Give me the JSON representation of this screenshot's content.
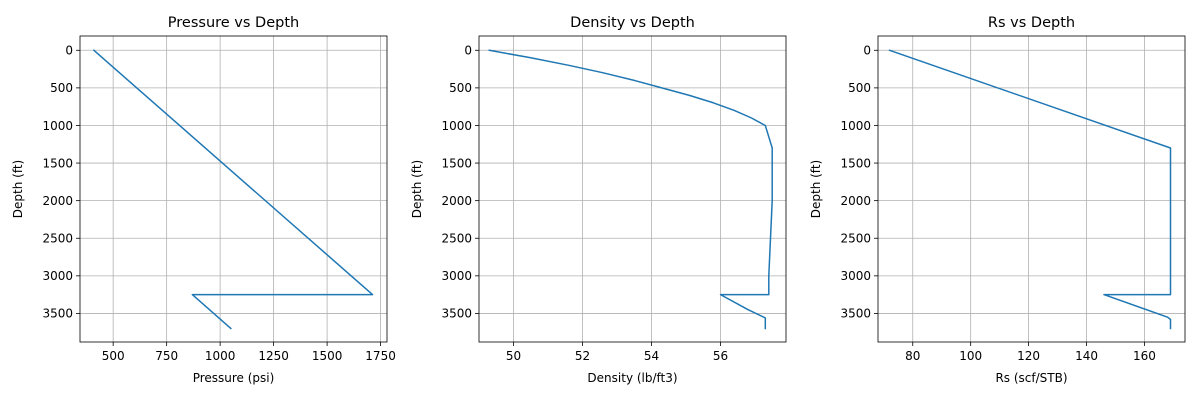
{
  "accent": "#1f77b4",
  "chart_data": [
    {
      "type": "line",
      "title": "Pressure vs Depth",
      "xlabel": "Pressure (psi)",
      "ylabel": "Depth (ft)",
      "xlim": [
        345,
        1780
      ],
      "ylim": [
        3880,
        -190
      ],
      "xticks": [
        "500",
        "750",
        "1000",
        "1250",
        "1500",
        "1750"
      ],
      "xtick_values": [
        500,
        750,
        1000,
        1250,
        1500,
        1750
      ],
      "yticks": [
        "0",
        "500",
        "1000",
        "1500",
        "2000",
        "2500",
        "3000",
        "3500"
      ],
      "ytick_values": [
        0,
        500,
        1000,
        1500,
        2000,
        2500,
        3000,
        3500
      ],
      "grid": true,
      "series": [
        {
          "color": "#1f77b4",
          "x": [
            410,
            1712,
            1712,
            870,
            1050
          ],
          "y": [
            0,
            3250,
            3250,
            3250,
            3700
          ]
        }
      ]
    },
    {
      "type": "line",
      "title": "Density vs Depth",
      "xlabel": "Density (lb/ft3)",
      "ylabel": "Depth (ft)",
      "xlim": [
        49.0,
        57.9
      ],
      "ylim": [
        3880,
        -190
      ],
      "xticks": [
        "50",
        "52",
        "54",
        "56"
      ],
      "xtick_values": [
        50,
        52,
        54,
        56
      ],
      "yticks": [
        "0",
        "500",
        "1000",
        "1500",
        "2000",
        "2500",
        "3000",
        "3500"
      ],
      "ytick_values": [
        0,
        500,
        1000,
        1500,
        2000,
        2500,
        3000,
        3500
      ],
      "grid": true,
      "series": [
        {
          "color": "#1f77b4",
          "x": [
            49.3,
            50.5,
            51.6,
            52.6,
            53.5,
            54.3,
            55.1,
            55.8,
            56.4,
            56.9,
            57.3,
            57.5,
            57.5,
            57.4,
            57.4,
            56.0,
            56.8,
            57.3,
            57.3,
            57.3
          ],
          "y": [
            0,
            100,
            200,
            300,
            400,
            500,
            600,
            700,
            800,
            900,
            1000,
            1300,
            2000,
            3000,
            3250,
            3250,
            3450,
            3560,
            3580,
            3700
          ]
        }
      ]
    },
    {
      "type": "line",
      "title": "Rs vs Depth",
      "xlabel": "Rs (scf/STB)",
      "ylabel": "Depth (ft)",
      "xlim": [
        68,
        174
      ],
      "ylim": [
        3880,
        -190
      ],
      "xticks": [
        "80",
        "100",
        "120",
        "140",
        "160"
      ],
      "xtick_values": [
        80,
        100,
        120,
        140,
        160
      ],
      "yticks": [
        "0",
        "500",
        "1000",
        "1500",
        "2000",
        "2500",
        "3000",
        "3500"
      ],
      "ytick_values": [
        0,
        500,
        1000,
        1500,
        2000,
        2500,
        3000,
        3500
      ],
      "grid": true,
      "series": [
        {
          "color": "#1f77b4",
          "x": [
            72,
            169,
            169,
            169,
            146,
            168,
            169,
            169
          ],
          "y": [
            0,
            1300,
            2000,
            3250,
            3250,
            3550,
            3580,
            3700
          ]
        }
      ]
    }
  ]
}
